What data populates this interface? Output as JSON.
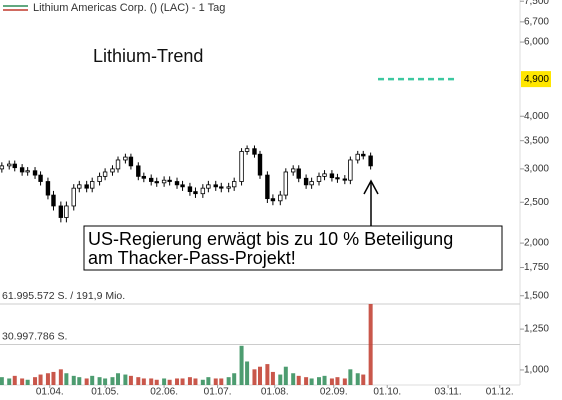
{
  "chart_data": {
    "type": "candlestick",
    "title": "Lithium-Trend",
    "legend": "Lithium Americas Corp. () (LAC) - 1 Tag",
    "log_scale": true,
    "up_color": "#ffffff",
    "down_color": "#000000",
    "xlim": [
      "05.03.",
      "12.12."
    ],
    "xticks": [
      "01.04.",
      "01.05.",
      "02.06.",
      "01.07.",
      "01.08.",
      "02.09.",
      "01.10.",
      "03.11.",
      "01.12."
    ],
    "ylim": [
      0.921,
      7.55
    ],
    "yticks": [
      {
        "value": 7.5,
        "label": "7,500"
      },
      {
        "value": 6.7,
        "label": "6,700"
      },
      {
        "value": 6,
        "label": "6,000"
      },
      {
        "value": 4,
        "label": "4,000"
      },
      {
        "value": 3.5,
        "label": "3,500"
      },
      {
        "value": 3,
        "label": "3,000"
      },
      {
        "value": 2.5,
        "label": "2,500"
      },
      {
        "value": 2,
        "label": "2,000"
      },
      {
        "value": 1.75,
        "label": "1,750"
      },
      {
        "value": 1.5,
        "label": "1,500"
      },
      {
        "value": 1.25,
        "label": "1,250"
      },
      {
        "value": 1,
        "label": "1,000"
      }
    ],
    "x": [
      "06.03.",
      "10.03.",
      "13.03.",
      "17.03.",
      "20.03.",
      "24.03.",
      "27.03.",
      "31.03.",
      "03.04.",
      "07.04.",
      "10.04.",
      "14.04.",
      "17.04.",
      "21.04.",
      "24.04.",
      "28.04.",
      "01.05.",
      "05.05.",
      "08.05.",
      "12.05.",
      "15.05.",
      "19.05.",
      "22.05.",
      "26.05.",
      "29.05.",
      "02.06.",
      "05.06.",
      "09.06.",
      "12.06.",
      "16.06.",
      "19.06.",
      "23.06.",
      "26.06.",
      "30.06.",
      "03.07.",
      "07.07.",
      "10.07.",
      "14.07.",
      "17.07.",
      "21.07.",
      "24.07.",
      "28.07.",
      "31.07.",
      "04.08.",
      "07.08.",
      "11.08.",
      "14.08.",
      "18.08.",
      "21.08.",
      "25.08.",
      "28.08.",
      "01.09.",
      "04.09.",
      "08.09.",
      "11.09.",
      "15.09.",
      "18.09.",
      "22.09."
    ],
    "open": [
      3.0,
      3.05,
      3.08,
      3.02,
      2.95,
      2.97,
      2.9,
      2.8,
      2.6,
      2.45,
      2.3,
      2.45,
      2.7,
      2.75,
      2.7,
      2.8,
      2.88,
      2.95,
      3.0,
      3.15,
      3.2,
      3.05,
      2.88,
      2.85,
      2.8,
      2.78,
      2.82,
      2.8,
      2.75,
      2.72,
      2.65,
      2.62,
      2.7,
      2.75,
      2.72,
      2.7,
      2.72,
      2.8,
      3.3,
      3.35,
      3.25,
      2.9,
      2.55,
      2.52,
      2.6,
      2.95,
      3.0,
      2.85,
      2.75,
      2.8,
      2.88,
      2.92,
      2.86,
      2.84,
      2.82,
      3.15,
      3.25,
      3.22
    ],
    "high": [
      3.11,
      3.14,
      3.14,
      3.08,
      3.03,
      3.03,
      2.96,
      2.86,
      2.66,
      2.51,
      2.51,
      2.76,
      2.81,
      2.81,
      2.86,
      2.94,
      3.01,
      3.06,
      3.21,
      3.26,
      3.26,
      3.11,
      2.94,
      2.91,
      2.86,
      2.88,
      2.88,
      2.86,
      2.81,
      2.78,
      2.71,
      2.76,
      2.81,
      2.81,
      2.78,
      2.78,
      2.86,
      3.36,
      3.41,
      3.41,
      3.31,
      2.96,
      2.61,
      2.66,
      3.01,
      3.06,
      3.06,
      2.91,
      2.86,
      2.94,
      2.98,
      2.98,
      2.92,
      2.9,
      3.21,
      3.31,
      3.31,
      3.28
    ],
    "low": [
      2.94,
      2.99,
      2.96,
      2.89,
      2.89,
      2.84,
      2.74,
      2.54,
      2.39,
      2.24,
      2.24,
      2.39,
      2.64,
      2.64,
      2.64,
      2.74,
      2.82,
      2.89,
      2.94,
      3.09,
      2.99,
      2.82,
      2.79,
      2.74,
      2.72,
      2.72,
      2.74,
      2.69,
      2.66,
      2.59,
      2.56,
      2.56,
      2.64,
      2.66,
      2.64,
      2.64,
      2.66,
      2.74,
      3.24,
      3.19,
      2.84,
      2.49,
      2.46,
      2.46,
      2.54,
      2.89,
      2.79,
      2.69,
      2.69,
      2.74,
      2.82,
      2.8,
      2.78,
      2.76,
      2.76,
      3.09,
      3.16,
      2.99
    ],
    "close": [
      3.05,
      3.08,
      3.02,
      2.95,
      2.97,
      2.9,
      2.8,
      2.6,
      2.45,
      2.3,
      2.45,
      2.7,
      2.75,
      2.7,
      2.8,
      2.88,
      2.95,
      3.0,
      3.15,
      3.2,
      3.05,
      2.88,
      2.85,
      2.8,
      2.78,
      2.82,
      2.8,
      2.75,
      2.72,
      2.65,
      2.62,
      2.7,
      2.75,
      2.72,
      2.7,
      2.72,
      2.8,
      3.3,
      3.35,
      3.25,
      2.9,
      2.55,
      2.52,
      2.6,
      2.95,
      3.0,
      2.85,
      2.75,
      2.8,
      2.88,
      2.92,
      2.86,
      2.84,
      2.82,
      3.15,
      3.25,
      3.22,
      3.05
    ],
    "volume": {
      "up_color": "#2e8b57",
      "down_color": "#c0392b",
      "ylim": [
        0,
        61995572
      ],
      "yticks": [
        {
          "value": 61995572,
          "label": "61.995.572 S. / 191,9 Mio."
        },
        {
          "value": 30997786,
          "label": "30.997.786 S."
        }
      ],
      "values": [
        6000000,
        5000000,
        7000000,
        5000000,
        4000000,
        6000000,
        8000000,
        9000000,
        10000000,
        12000000,
        9000000,
        7000000,
        6000000,
        5000000,
        7000000,
        6000000,
        5000000,
        6000000,
        9000000,
        8000000,
        7000000,
        6000000,
        5000000,
        5000000,
        4000000,
        5000000,
        4000000,
        5000000,
        5000000,
        6000000,
        5000000,
        4000000,
        6000000,
        5000000,
        5000000,
        6000000,
        9000000,
        30000000,
        18000000,
        12000000,
        14000000,
        16000000,
        10000000,
        8000000,
        14000000,
        9000000,
        7000000,
        6000000,
        5000000,
        6000000,
        7000000,
        5000000,
        6000000,
        5000000,
        12000000,
        9000000,
        8000000,
        61995572
      ]
    },
    "target": {
      "value": 4.9,
      "label": "4,900",
      "x": [
        "26.09.",
        "08.11."
      ],
      "color": "#3cc8a0"
    },
    "annotation": [
      "US-Regierung erwägt bis zu 10 % Beteiligung",
      "am Thacker-Pass-Projekt!"
    ]
  }
}
